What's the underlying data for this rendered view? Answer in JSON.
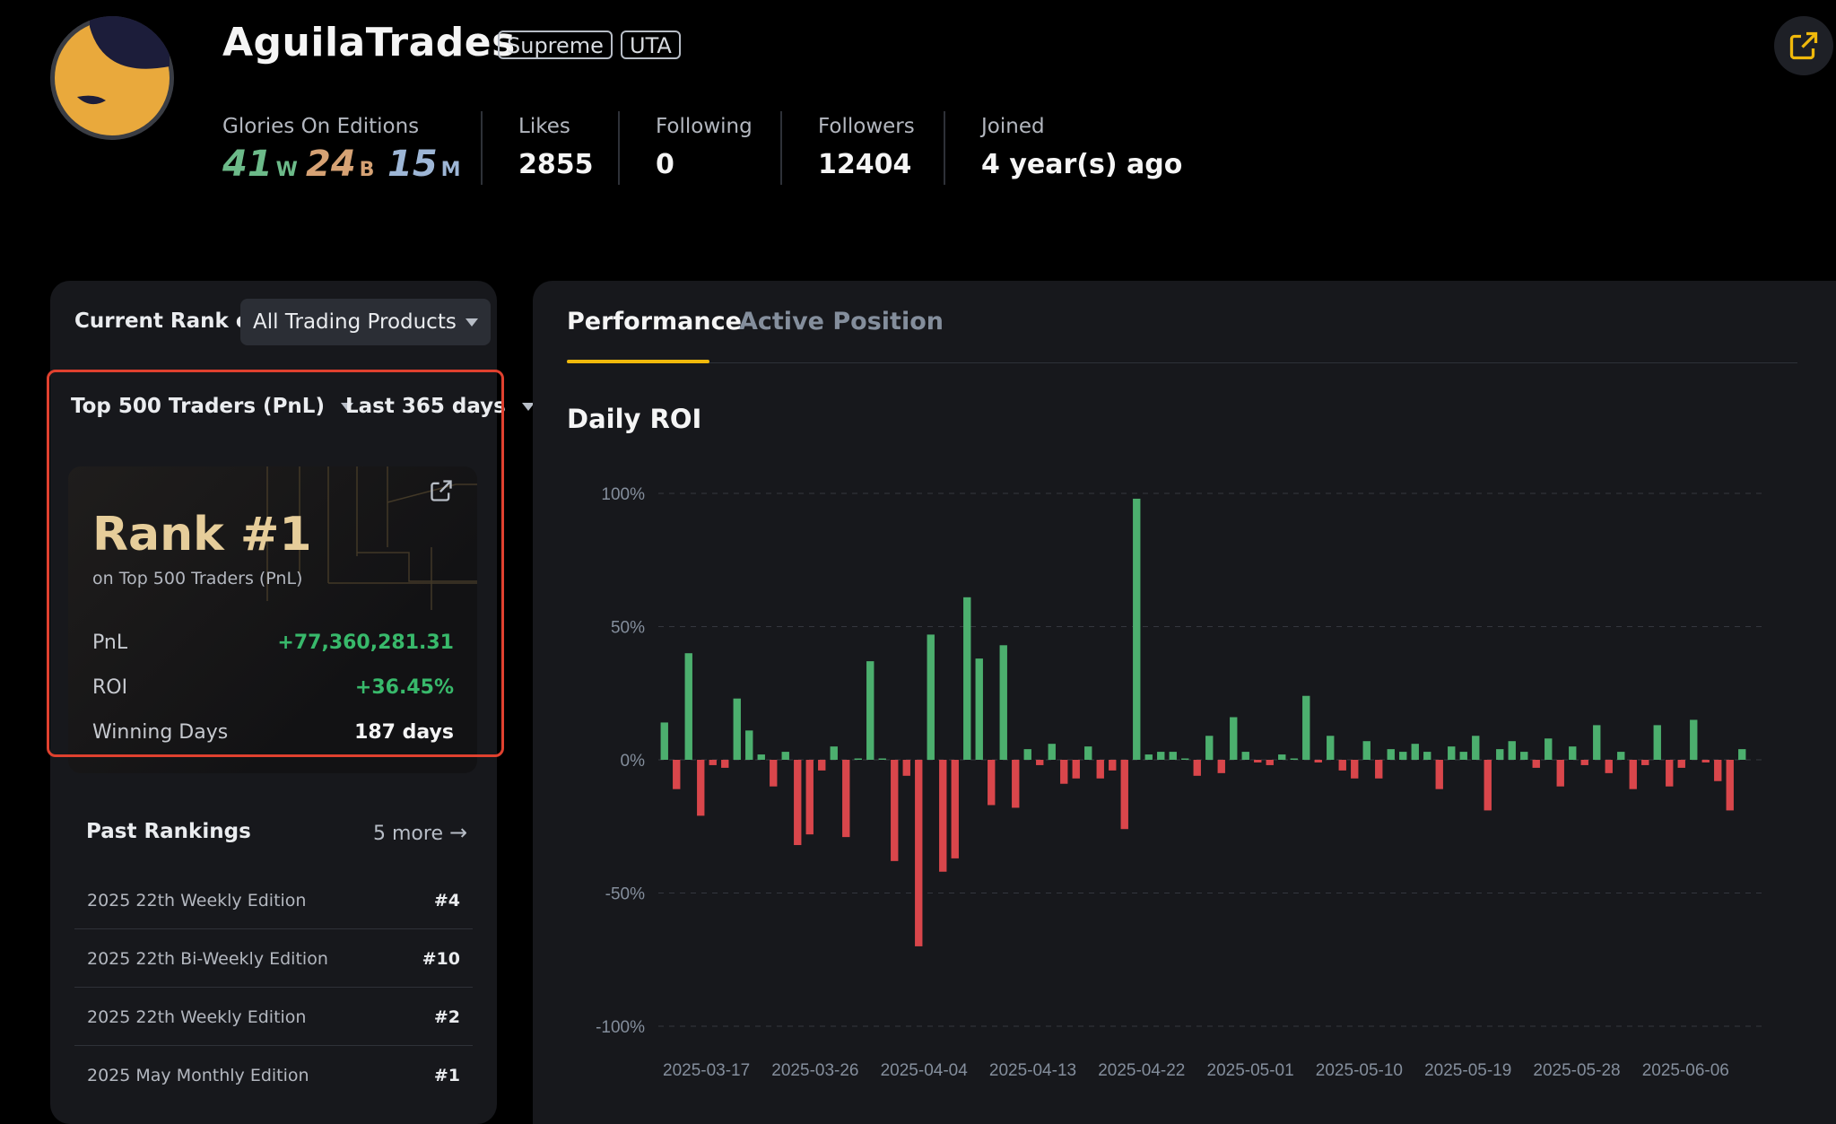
{
  "profile": {
    "username": "AguilaTrades",
    "tags": [
      "Supreme",
      "UTA"
    ],
    "glories_label": "Glories On Editions",
    "glories": [
      {
        "count": "41",
        "letter": "W",
        "color": "#6cba89"
      },
      {
        "count": "24",
        "letter": "B",
        "color": "#d6a274"
      },
      {
        "count": "15",
        "letter": "M",
        "color": "#9db6d6"
      }
    ],
    "stats": [
      {
        "label": "Likes",
        "value": "2855"
      },
      {
        "label": "Following",
        "value": "0"
      },
      {
        "label": "Followers",
        "value": "12404"
      },
      {
        "label": "Joined",
        "value": "4 year(s) ago"
      }
    ]
  },
  "rank_panel": {
    "current_rank_label": "Current Rank on",
    "product_select": "All Trading Products",
    "board_select": "Top 500 Traders (PnL)",
    "period_select": "Last 365 days",
    "rank_title": "Rank #1",
    "rank_subtitle": "on Top 500 Traders (PnL)",
    "rows": [
      {
        "label": "PnL",
        "value": "+77,360,281.31",
        "positive": true
      },
      {
        "label": "ROI",
        "value": "+36.45%",
        "positive": true
      },
      {
        "label": "Winning Days",
        "value": "187 days",
        "positive": false
      }
    ]
  },
  "past_rankings": {
    "title": "Past Rankings",
    "more_label": "5 more",
    "items": [
      {
        "name": "2025 22th Weekly Edition",
        "rank": "#4"
      },
      {
        "name": "2025 22th Bi-Weekly Edition",
        "rank": "#10"
      },
      {
        "name": "2025 22th Weekly Edition",
        "rank": "#2"
      },
      {
        "name": "2025 May Monthly Edition",
        "rank": "#1"
      }
    ]
  },
  "tabs": [
    "Performance",
    "Active Position"
  ],
  "colors": {
    "positive": "#4caf6e",
    "negative": "#d9464b",
    "accent": "#f0b90b"
  },
  "chart_data": {
    "type": "bar",
    "title": "Daily ROI",
    "ylim": [
      -100,
      100
    ],
    "yticks": [
      100,
      50,
      0,
      -50,
      -100
    ],
    "ytick_labels": [
      "100%",
      "50%",
      "0%",
      "-50%",
      "-100%"
    ],
    "xtick_labels": [
      "2025-03-17",
      "2025-03-26",
      "2025-04-04",
      "2025-04-13",
      "2025-04-22",
      "2025-05-01",
      "2025-05-10",
      "2025-05-19",
      "2025-05-28",
      "2025-06-06"
    ],
    "grid": true,
    "series": [
      {
        "values": [
          14,
          -11,
          40,
          -21,
          -2,
          -3,
          23,
          11,
          2,
          -10,
          3,
          -32,
          -28,
          -4,
          5,
          -29,
          0,
          37,
          0,
          -38,
          -6,
          -70,
          47,
          -42,
          -37,
          61,
          38,
          -17,
          43,
          -18,
          4,
          -2,
          6,
          -9,
          -7,
          5,
          -7,
          -4,
          -26,
          98,
          2,
          3,
          3,
          0,
          -6,
          9,
          -5,
          16,
          3,
          -1,
          -2,
          2,
          0,
          24,
          -1,
          9,
          -4,
          -7,
          7,
          -7,
          4,
          3,
          6,
          3,
          -11,
          5,
          3,
          9,
          -19,
          4,
          7,
          3,
          -3,
          8,
          -10,
          5,
          -2,
          13,
          -5,
          3,
          -11,
          -2,
          13,
          -10,
          -3,
          15,
          -1,
          -8,
          -19,
          4
        ]
      }
    ]
  }
}
